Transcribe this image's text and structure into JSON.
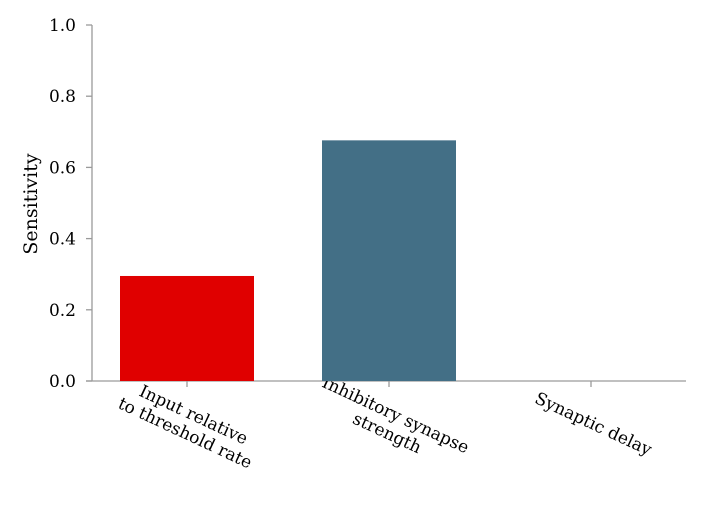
{
  "chart_data": {
    "type": "bar",
    "categories": [
      [
        "Input relative",
        "to threshold rate"
      ],
      [
        "Inhibitory synapse",
        "strength"
      ],
      [
        "Synaptic delay"
      ]
    ],
    "values": [
      0.295,
      0.676,
      0.0
    ],
    "colors": [
      "#e00000",
      "#436f86",
      "#436f86"
    ],
    "title": "",
    "xlabel": "",
    "ylabel": "Sensitivity",
    "ylim": [
      0,
      1.0
    ],
    "yticks": [
      "0.0",
      "0.2",
      "0.4",
      "0.6",
      "0.8",
      "1.0"
    ],
    "grid": false,
    "axis_color": "#9a9a9a"
  }
}
